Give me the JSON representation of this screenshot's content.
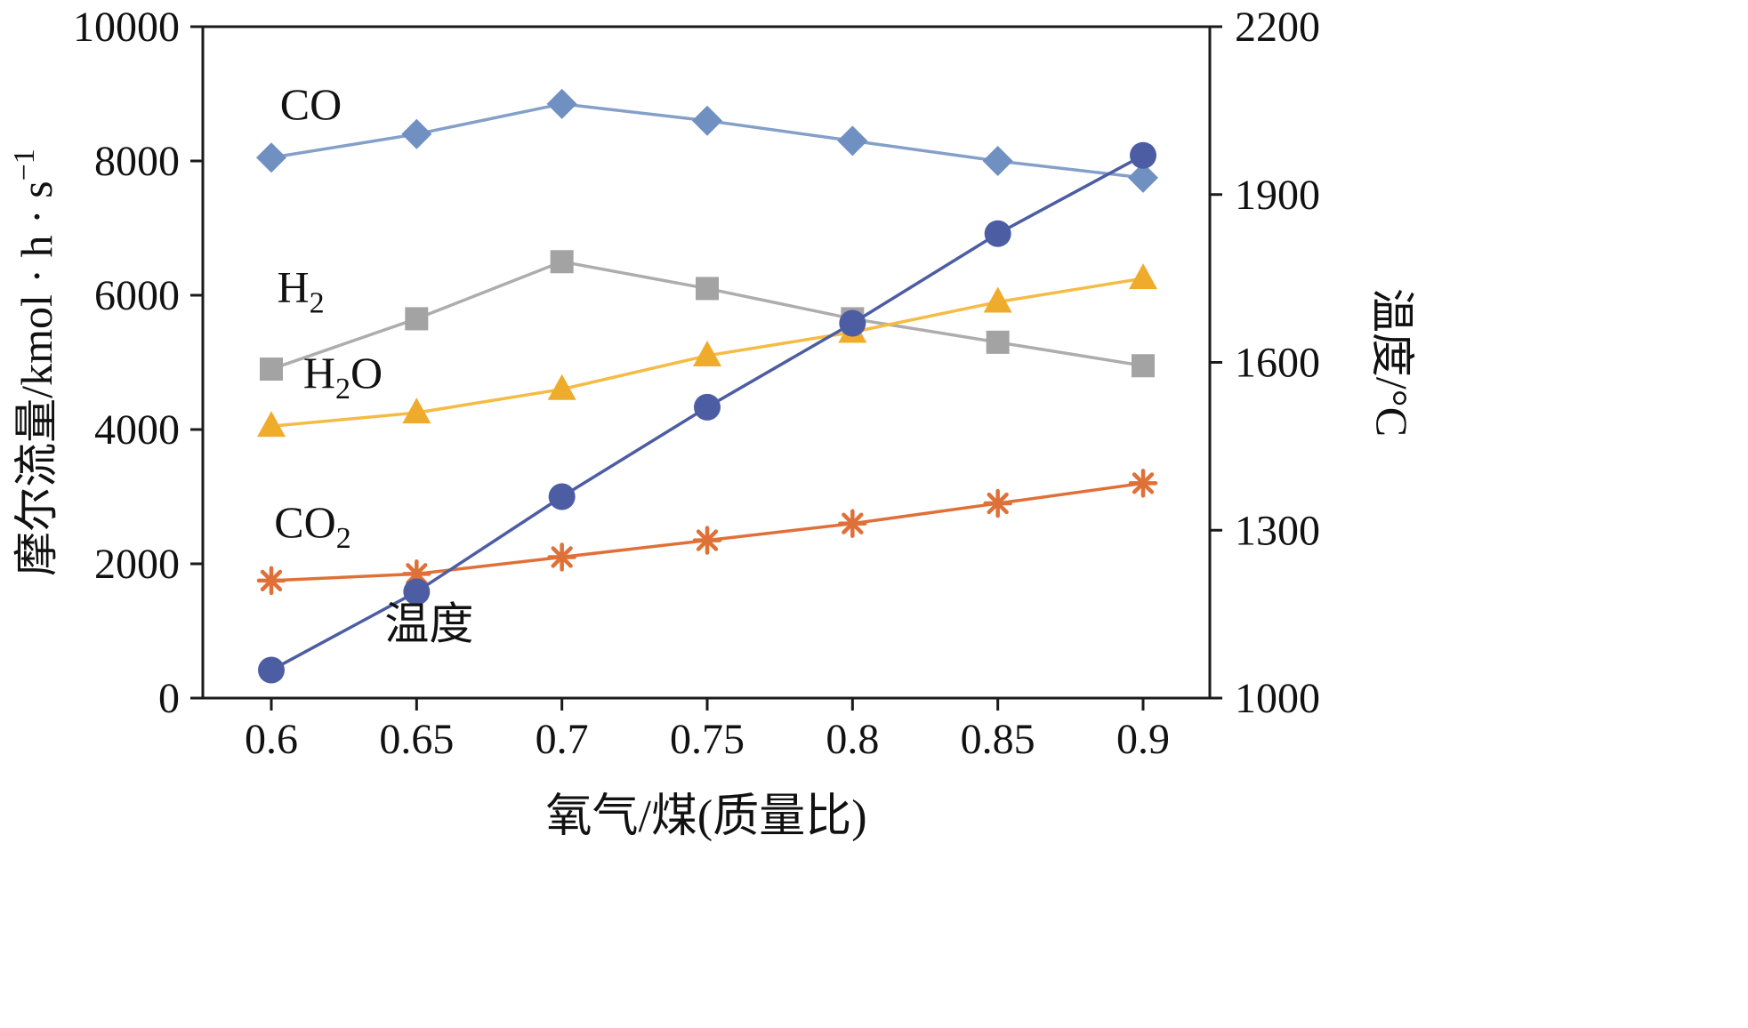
{
  "figure": {
    "background": "#ffffff",
    "axis_color": "#1a1a1a"
  },
  "chart_data": {
    "type": "line",
    "x": [
      0.6,
      0.65,
      0.7,
      0.75,
      0.8,
      0.85,
      0.9
    ],
    "x_tick_labels": [
      "0.6",
      "0.65",
      "0.7",
      "0.75",
      "0.8",
      "0.85",
      "0.9"
    ],
    "xlabel": "氧气/煤(质量比)",
    "grid": false,
    "legend_position": "inline-annotations",
    "left_axis": {
      "min": 0,
      "max": 10000,
      "ticks": [
        0,
        2000,
        4000,
        6000,
        8000,
        10000
      ],
      "tick_labels": [
        "0",
        "2000",
        "4000",
        "6000",
        "8000",
        "10000"
      ],
      "label_parts": [
        {
          "t": "摩尔流量/kmol · h · s"
        },
        {
          "t": "−1",
          "sup": true
        }
      ]
    },
    "right_axis": {
      "min": 1000,
      "max": 2200,
      "ticks": [
        1000,
        1300,
        1600,
        1900,
        2200
      ],
      "tick_labels": [
        "1000",
        "1300",
        "1600",
        "1900",
        "2200"
      ],
      "label_parts": [
        {
          "t": "温度/°C"
        }
      ]
    },
    "series": [
      {
        "name": "CO",
        "axis": "left",
        "marker": "diamond",
        "line_color": "#84a0c9",
        "marker_color": "#6f90c1",
        "values": [
          8050,
          8400,
          8850,
          8600,
          8300,
          8000,
          7750
        ],
        "annotation": {
          "x": 0.603,
          "y": 8620,
          "parts": [
            {
              "t": "CO"
            }
          ]
        }
      },
      {
        "name": "H2",
        "axis": "left",
        "marker": "square",
        "line_color": "#adadad",
        "marker_color": "#a3a3a3",
        "values": [
          4900,
          5650,
          6500,
          6100,
          5650,
          5300,
          4950
        ],
        "annotation": {
          "x": 0.602,
          "y": 5900,
          "parts": [
            {
              "t": "H"
            },
            {
              "t": "2",
              "sub": true
            }
          ]
        }
      },
      {
        "name": "H2O",
        "axis": "left",
        "marker": "triangle",
        "line_color": "#f4bc45",
        "marker_color": "#efac2c",
        "values": [
          4050,
          4250,
          4600,
          5100,
          5450,
          5900,
          6250
        ],
        "annotation": {
          "x": 0.611,
          "y": 4620,
          "parts": [
            {
              "t": "H"
            },
            {
              "t": "2",
              "sub": true
            },
            {
              "t": "O"
            }
          ]
        }
      },
      {
        "name": "CO2",
        "axis": "left",
        "marker": "asterisk",
        "line_color": "#df7038",
        "marker_color": "#df7038",
        "values": [
          1750,
          1850,
          2100,
          2350,
          2600,
          2900,
          3200
        ],
        "annotation": {
          "x": 0.601,
          "y": 2400,
          "parts": [
            {
              "t": "CO"
            },
            {
              "t": "2",
              "sub": true
            }
          ]
        }
      },
      {
        "name": "温度",
        "axis": "right",
        "marker": "circle",
        "line_color": "#4c5da4",
        "marker_color": "#4c5da4",
        "values": [
          1050,
          1190,
          1360,
          1520,
          1670,
          1830,
          1970
        ],
        "annotation": {
          "x": 0.639,
          "y": 880,
          "parts": [
            {
              "t": "温度"
            }
          ]
        }
      }
    ]
  }
}
